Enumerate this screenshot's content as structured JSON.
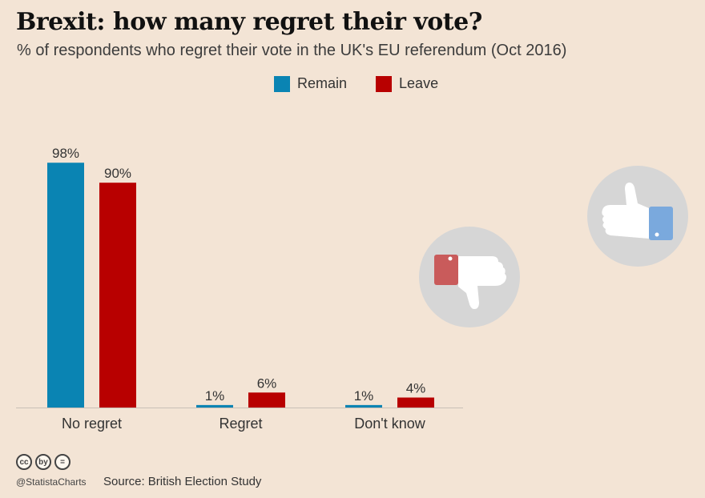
{
  "header": {
    "title": "Brexit: how many regret their vote?",
    "subtitle": "% of respondents who regret their vote in the UK's EU referendum (Oct 2016)"
  },
  "legend": [
    {
      "label": "Remain",
      "color": "#0a84b3"
    },
    {
      "label": "Leave",
      "color": "#b80000"
    }
  ],
  "chart_data": {
    "type": "bar",
    "title": "Brexit: how many regret their vote?",
    "categories": [
      "No regret",
      "Regret",
      "Don't know"
    ],
    "series": [
      {
        "name": "Remain",
        "values": [
          98,
          1,
          1
        ],
        "labels": [
          "98%",
          "1%",
          "1%"
        ],
        "color": "#0a84b3"
      },
      {
        "name": "Leave",
        "values": [
          90,
          6,
          4
        ],
        "labels": [
          "90%",
          "6%",
          "4%"
        ],
        "color": "#b80000"
      }
    ],
    "xlabel": "",
    "ylabel": "",
    "ylim": [
      0,
      100
    ],
    "legend_position": "top-center",
    "grid": false
  },
  "footer": {
    "cc_icons": [
      "cc",
      "by",
      "="
    ],
    "handle": "@StatistaCharts",
    "source_label": "Source:",
    "source_value": "British Election Study"
  },
  "icons": {
    "thumbs_down": "thumbs-down-icon",
    "thumbs_up": "thumbs-up-icon"
  }
}
